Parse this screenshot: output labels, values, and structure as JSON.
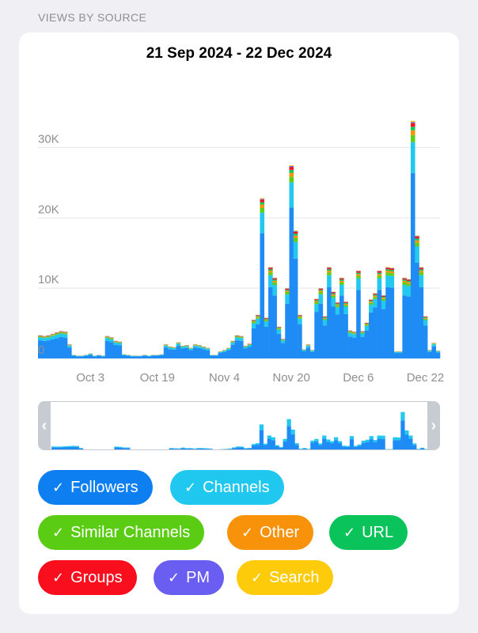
{
  "header": {
    "section_title": "VIEWS BY SOURCE"
  },
  "chart_data": {
    "type": "bar",
    "stacked": true,
    "title": "21 Sep 2024 - 22 Dec 2024",
    "ylim": [
      0,
      35000
    ],
    "y_ticks": [
      0,
      10000,
      20000,
      30000
    ],
    "y_tick_labels": [
      "0",
      "10K",
      "20K",
      "30K"
    ],
    "x_tick_labels": [
      "Oct 3",
      "Oct 19",
      "Nov 4",
      "Nov 20",
      "Dec 6",
      "Dec 22"
    ],
    "x_tick_indices": [
      12,
      28,
      44,
      60,
      76,
      92
    ],
    "grid": true,
    "series": [
      {
        "name": "Followers",
        "color": "#1f8cf5"
      },
      {
        "name": "Channels",
        "color": "#23c8ee"
      },
      {
        "name": "Similar Channels",
        "color": "#5dcf18"
      },
      {
        "name": "Other",
        "color": "#f59409"
      },
      {
        "name": "URL",
        "color": "#0fc95d"
      },
      {
        "name": "Groups",
        "color": "#f71420"
      },
      {
        "name": "PM",
        "color": "#6a5cf2"
      },
      {
        "name": "Search",
        "color": "#fdcc10"
      }
    ],
    "totals": [
      3300,
      3200,
      3300,
      3500,
      3700,
      3900,
      3800,
      2000,
      500,
      400,
      400,
      500,
      700,
      400,
      500,
      400,
      3200,
      3000,
      2500,
      2400,
      600,
      500,
      400,
      400,
      400,
      500,
      400,
      500,
      500,
      600,
      2000,
      1700,
      1600,
      2300,
      1800,
      1900,
      1500,
      2000,
      1900,
      1700,
      1500,
      500,
      500,
      1000,
      1200,
      1500,
      2500,
      3300,
      3200,
      1800,
      2100,
      5500,
      6200,
      22800,
      5800,
      13000,
      11500,
      4500,
      2800,
      10000,
      27500,
      18200,
      6200,
      1300,
      2000,
      1200,
      8500,
      10000,
      6000,
      13000,
      9500,
      8000,
      11500,
      8100,
      4000,
      3800,
      12500,
      3900,
      5100,
      8400,
      9300,
      12500,
      9000,
      13000,
      12900,
      1000,
      1000,
      11500,
      11300,
      33800,
      17500,
      13000,
      6000,
      1200,
      2200,
      1100
    ],
    "breakdown_pct": {
      "Followers": 78,
      "Channels": 13,
      "Similar Channels": 3,
      "Other": 2,
      "URL": 1.5,
      "Groups": 1.5,
      "PM": 0.5,
      "Search": 0.5
    }
  },
  "navigator": {
    "left_handle_icon": "chevron-left-icon",
    "right_handle_icon": "chevron-right-icon"
  },
  "legend": {
    "items": [
      {
        "label": "Followers",
        "color": "#0d7ff0",
        "icon": "checkmark-icon"
      },
      {
        "label": "Channels",
        "color": "#20c7ef",
        "icon": "checkmark-icon"
      },
      {
        "label": "Similar Channels",
        "color": "#5bcc14",
        "icon": "checkmark-icon"
      },
      {
        "label": "Other",
        "color": "#f7920a",
        "icon": "checkmark-icon"
      },
      {
        "label": "URL",
        "color": "#0ac35b",
        "icon": "checkmark-icon"
      },
      {
        "label": "Groups",
        "color": "#f80e1d",
        "icon": "checkmark-icon"
      },
      {
        "label": "PM",
        "color": "#6a5df2",
        "icon": "checkmark-icon"
      },
      {
        "label": "Search",
        "color": "#fecb0b",
        "icon": "checkmark-icon"
      }
    ]
  }
}
